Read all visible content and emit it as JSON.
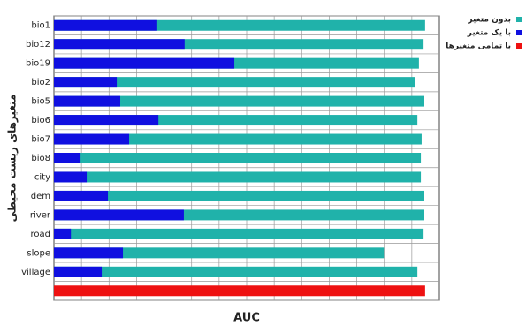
{
  "chart_data": {
    "type": "barh",
    "x_label": "AUC",
    "y_label": "متغیرهای زیست محیطی",
    "categories": [
      "bio1",
      "bio12",
      "bio19",
      "bio2",
      "bio5",
      "bio6",
      "bio7",
      "bio8",
      "city",
      "dem",
      "river",
      "road",
      "slope",
      "village",
      null
    ],
    "series": [
      {
        "name": "بدون متغیر",
        "color": "#20b2aa",
        "values": [
          0.963,
          0.959,
          0.947,
          0.936,
          0.961,
          0.943,
          0.954,
          0.952,
          0.952,
          0.961,
          0.961,
          0.959,
          0.856,
          0.943,
          null
        ]
      },
      {
        "name": "با یک متغیر",
        "color": "#1010e0",
        "values": [
          0.268,
          0.339,
          0.468,
          0.163,
          0.172,
          0.271,
          0.195,
          0.069,
          0.085,
          0.14,
          0.337,
          0.044,
          0.179,
          0.124,
          null
        ]
      },
      {
        "name": "با تمامی متغیرها",
        "color": "#ee1111",
        "values": [
          null,
          null,
          null,
          null,
          null,
          null,
          null,
          null,
          null,
          null,
          null,
          null,
          null,
          null,
          0.963
        ]
      }
    ],
    "xlim": [
      0,
      1
    ]
  }
}
